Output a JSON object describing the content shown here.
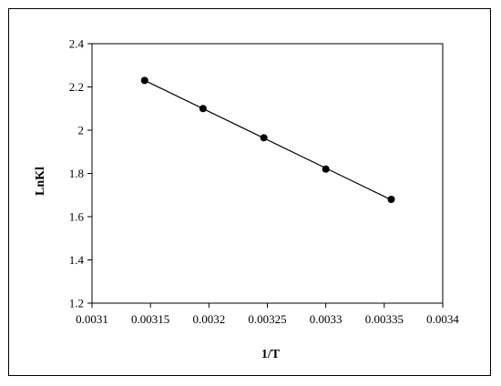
{
  "chart_data": {
    "type": "scatter",
    "title": "",
    "xlabel": "1/T",
    "ylabel": "LnKl",
    "xlim": [
      0.0031,
      0.0034
    ],
    "ylim": [
      1.2,
      2.4
    ],
    "xticks": [
      "0.0031",
      "0.00315",
      "0.0032",
      "0.00325",
      "0.0033",
      "0.00335",
      "0.0034"
    ],
    "yticks": [
      "1.2",
      "1.4",
      "1.6",
      "1.8",
      "2",
      "2.2",
      "2.4"
    ],
    "grid": false,
    "legend": "none",
    "series": [
      {
        "x": [
          0.003145,
          0.003195,
          0.003247,
          0.0033,
          0.003356
        ],
        "y": [
          2.23,
          2.1,
          1.965,
          1.82,
          1.68
        ],
        "trendline": "linear"
      }
    ],
    "colors": {
      "marker": "#000000",
      "line": "#000000"
    }
  }
}
